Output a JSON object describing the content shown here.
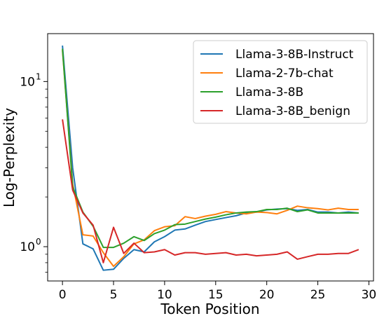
{
  "chart_data": {
    "type": "line",
    "xlabel": "Token Position",
    "ylabel": "Log-Perplexity",
    "xlim": [
      -1.45,
      30.45
    ],
    "ylim": [
      0.62,
      19.5
    ],
    "yscale": "log",
    "grid": false,
    "legend_position": "top-right",
    "x_ticks": [
      0,
      5,
      10,
      15,
      20,
      25,
      30
    ],
    "y_ticks": [
      {
        "value": 1,
        "label": "10",
        "exponent": "0"
      },
      {
        "value": 10,
        "label": "10",
        "exponent": "1"
      }
    ],
    "x": [
      0,
      1,
      2,
      3,
      4,
      5,
      6,
      7,
      8,
      9,
      10,
      11,
      12,
      13,
      14,
      15,
      16,
      17,
      18,
      19,
      20,
      21,
      22,
      23,
      24,
      25,
      26,
      27,
      28,
      29
    ],
    "series": [
      {
        "name": "Llama-3-8B-Instruct",
        "color": "#1f77b4",
        "values": [
          16.5,
          3.0,
          1.04,
          0.97,
          0.72,
          0.73,
          0.85,
          0.96,
          0.93,
          1.07,
          1.15,
          1.26,
          1.28,
          1.35,
          1.42,
          1.46,
          1.5,
          1.54,
          1.6,
          1.62,
          1.67,
          1.69,
          1.7,
          1.66,
          1.68,
          1.62,
          1.62,
          1.6,
          1.62,
          1.6
        ]
      },
      {
        "name": "Llama-2-7b-chat",
        "color": "#ff7f0e",
        "values": [
          15.5,
          2.4,
          1.18,
          1.16,
          0.92,
          0.76,
          0.87,
          1.04,
          1.1,
          1.25,
          1.32,
          1.34,
          1.52,
          1.48,
          1.53,
          1.57,
          1.63,
          1.6,
          1.58,
          1.62,
          1.61,
          1.58,
          1.66,
          1.76,
          1.72,
          1.7,
          1.67,
          1.71,
          1.68,
          1.68
        ]
      },
      {
        "name": "Llama-3-8B",
        "color": "#2ca02c",
        "values": [
          15.8,
          2.3,
          1.62,
          1.33,
          0.99,
          0.99,
          1.05,
          1.15,
          1.09,
          1.2,
          1.26,
          1.36,
          1.37,
          1.42,
          1.47,
          1.51,
          1.56,
          1.6,
          1.62,
          1.63,
          1.68,
          1.68,
          1.71,
          1.63,
          1.67,
          1.6,
          1.6,
          1.6,
          1.6,
          1.6
        ]
      },
      {
        "name": "Llama-3-8B_benign",
        "color": "#d62728",
        "values": [
          5.9,
          2.2,
          1.6,
          1.35,
          0.8,
          1.31,
          0.91,
          1.05,
          0.92,
          0.93,
          0.96,
          0.89,
          0.92,
          0.92,
          0.9,
          0.91,
          0.92,
          0.89,
          0.9,
          0.88,
          0.89,
          0.9,
          0.93,
          0.84,
          0.87,
          0.9,
          0.9,
          0.91,
          0.91,
          0.96
        ]
      }
    ]
  }
}
